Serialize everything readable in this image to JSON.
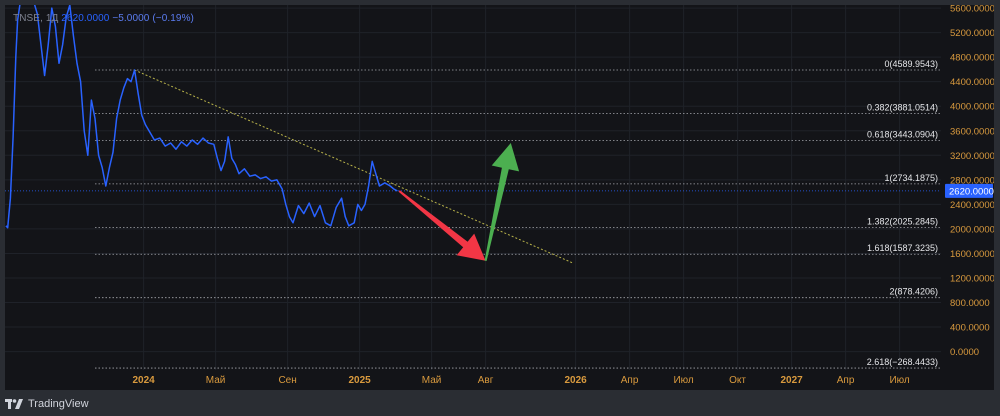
{
  "header": {
    "symbol": "TNSE, 1Д",
    "price": "2620.0000",
    "change": "−5.0000 (−0.19%)"
  },
  "footer": {
    "brand": "TradingView"
  },
  "colors": {
    "background": "#131418",
    "grid": "#1f2229",
    "price_line": "#2962ff",
    "fib_line": "#c9cbd2",
    "trend_line": "#b9b34a",
    "axis_text": "#d99a3e",
    "arrow_down": "#f23645",
    "arrow_up": "#4caf50"
  },
  "chart_data": {
    "type": "line",
    "y_axis": {
      "labels": [
        "5600.0000",
        "5200.0000",
        "4800.0000",
        "4400.0000",
        "4000.0000",
        "3600.0000",
        "3200.0000",
        "2800.0000",
        "2400.0000",
        "2000.0000",
        "1600.0000",
        "1200.0000",
        "800.0000",
        "400.0000",
        "0.0000"
      ],
      "ylim": [
        -300,
        5650
      ]
    },
    "x_axis": {
      "ticks": [
        {
          "label": "2024",
          "month": 24.0,
          "bold": true
        },
        {
          "label": "Май",
          "month": 28.0,
          "bold": false
        },
        {
          "label": "Сен",
          "month": 32.0,
          "bold": false
        },
        {
          "label": "2025",
          "month": 36.0,
          "bold": true
        },
        {
          "label": "Май",
          "month": 40.0,
          "bold": false
        },
        {
          "label": "Авг",
          "month": 43.0,
          "bold": false
        },
        {
          "label": "2026",
          "month": 48.0,
          "bold": true
        },
        {
          "label": "Апр",
          "month": 51.0,
          "bold": false
        },
        {
          "label": "Июл",
          "month": 54.0,
          "bold": false
        },
        {
          "label": "Окт",
          "month": 57.0,
          "bold": false
        },
        {
          "label": "2027",
          "month": 60.0,
          "bold": true
        },
        {
          "label": "Апр",
          "month": 63.0,
          "bold": false
        },
        {
          "label": "Июл",
          "month": 66.0,
          "bold": false
        }
      ],
      "xlim": [
        16.3,
        68.3
      ]
    },
    "series": [
      {
        "color": "#2962ff",
        "points": [
          [
            16.35,
            2050
          ],
          [
            16.45,
            2020
          ],
          [
            16.6,
            2500
          ],
          [
            16.75,
            3500
          ],
          [
            16.9,
            4800
          ],
          [
            17.0,
            5400
          ],
          [
            17.2,
            5800
          ],
          [
            17.5,
            5700
          ],
          [
            17.8,
            5800
          ],
          [
            18.1,
            5500
          ],
          [
            18.3,
            5000
          ],
          [
            18.5,
            4500
          ],
          [
            18.7,
            5000
          ],
          [
            18.9,
            5600
          ],
          [
            19.1,
            5300
          ],
          [
            19.3,
            4700
          ],
          [
            19.5,
            5000
          ],
          [
            19.7,
            5450
          ],
          [
            19.9,
            5650
          ],
          [
            20.1,
            5150
          ],
          [
            20.3,
            4700
          ],
          [
            20.5,
            4400
          ],
          [
            20.7,
            3600
          ],
          [
            20.9,
            3200
          ],
          [
            21.1,
            4100
          ],
          [
            21.3,
            3800
          ],
          [
            21.5,
            3200
          ],
          [
            21.7,
            3000
          ],
          [
            21.9,
            2700
          ],
          [
            22.1,
            3000
          ],
          [
            22.3,
            3250
          ],
          [
            22.5,
            3800
          ],
          [
            22.7,
            4100
          ],
          [
            22.9,
            4300
          ],
          [
            23.1,
            4450
          ],
          [
            23.3,
            4400
          ],
          [
            23.5,
            4590
          ],
          [
            23.7,
            4200
          ],
          [
            23.9,
            3850
          ],
          [
            24.1,
            3700
          ],
          [
            24.3,
            3600
          ],
          [
            24.6,
            3450
          ],
          [
            24.9,
            3480
          ],
          [
            25.2,
            3350
          ],
          [
            25.5,
            3400
          ],
          [
            25.8,
            3300
          ],
          [
            26.1,
            3420
          ],
          [
            26.4,
            3350
          ],
          [
            26.7,
            3450
          ],
          [
            27.0,
            3380
          ],
          [
            27.3,
            3480
          ],
          [
            27.6,
            3400
          ],
          [
            27.9,
            3380
          ],
          [
            28.1,
            3150
          ],
          [
            28.3,
            2950
          ],
          [
            28.5,
            3100
          ],
          [
            28.7,
            3500
          ],
          [
            28.9,
            3150
          ],
          [
            29.1,
            3050
          ],
          [
            29.3,
            2900
          ],
          [
            29.6,
            2980
          ],
          [
            29.9,
            2860
          ],
          [
            30.2,
            2880
          ],
          [
            30.5,
            2820
          ],
          [
            30.8,
            2850
          ],
          [
            31.1,
            2780
          ],
          [
            31.4,
            2800
          ],
          [
            31.7,
            2650
          ],
          [
            31.9,
            2400
          ],
          [
            32.1,
            2200
          ],
          [
            32.3,
            2100
          ],
          [
            32.6,
            2380
          ],
          [
            32.9,
            2250
          ],
          [
            33.2,
            2420
          ],
          [
            33.5,
            2200
          ],
          [
            33.8,
            2380
          ],
          [
            34.1,
            2100
          ],
          [
            34.4,
            2050
          ],
          [
            34.7,
            2350
          ],
          [
            35.0,
            2500
          ],
          [
            35.2,
            2200
          ],
          [
            35.4,
            2050
          ],
          [
            35.7,
            2100
          ],
          [
            35.9,
            2400
          ],
          [
            36.1,
            2300
          ],
          [
            36.3,
            2400
          ],
          [
            36.5,
            2700
          ],
          [
            36.7,
            3100
          ],
          [
            36.9,
            2900
          ],
          [
            37.1,
            2700
          ],
          [
            37.4,
            2750
          ],
          [
            37.7,
            2700
          ],
          [
            37.9,
            2650
          ],
          [
            38.1,
            2620
          ]
        ]
      }
    ],
    "fib_levels": [
      {
        "label": "0(4589.9543)",
        "value": 4589.9543
      },
      {
        "label": "0.382(3881.0514)",
        "value": 3881.0514
      },
      {
        "label": "0.618(3443.0904)",
        "value": 3443.0904
      },
      {
        "label": "1(2734.1875)",
        "value": 2734.1875
      },
      {
        "label": "1.382(2025.2845)",
        "value": 2025.2845
      },
      {
        "label": "1.618(1587.3235)",
        "value": 1587.3235
      },
      {
        "label": "2(878.4206)",
        "value": 878.4206
      },
      {
        "label": "2.618(−268.4433)",
        "value": -268.4433
      }
    ],
    "fib_start_month": 21.3,
    "trend_line": [
      [
        23.5,
        4590
      ],
      [
        47.8,
        1450
      ]
    ],
    "arrows": [
      {
        "name": "down",
        "from": [
          38.2,
          2620
        ],
        "to": [
          43.0,
          1480
        ]
      },
      {
        "name": "up",
        "from": [
          43.0,
          1480
        ],
        "to": [
          44.4,
          3400
        ]
      }
    ],
    "current_price": {
      "label": "2620.0000",
      "value": 2620
    }
  }
}
